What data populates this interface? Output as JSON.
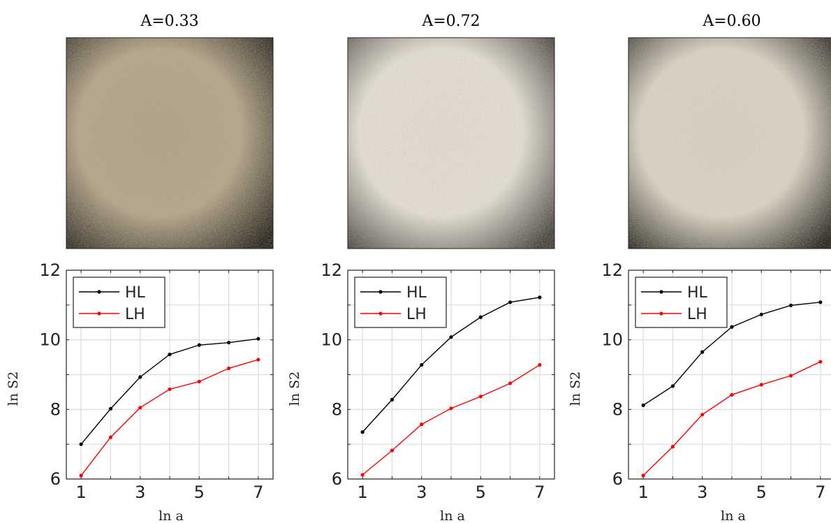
{
  "panels": [
    {
      "title": "A=0.33",
      "image": {
        "description": "textured surface photo",
        "tone_center": "#b0a083",
        "tone_edge": "#2f2a21"
      }
    },
    {
      "title": "A=0.72",
      "image": {
        "description": "textured surface photo",
        "tone_center": "#e1dbcf",
        "tone_edge": "#4a463f"
      }
    },
    {
      "title": "A=0.60",
      "image": {
        "description": "textured surface photo",
        "tone_center": "#d7d0bf",
        "tone_edge": "#2c2922"
      }
    }
  ],
  "chart_data": [
    {
      "type": "line",
      "xlabel": "ln a",
      "ylabel": "ln S2",
      "xlim": [
        0.5,
        7.5
      ],
      "ylim": [
        6,
        12
      ],
      "xticks": [
        1,
        3,
        5,
        7
      ],
      "yticks": [
        6,
        8,
        10,
        12
      ],
      "grid": true,
      "legend": "top-left",
      "x": [
        1,
        2,
        3,
        4,
        5,
        6,
        7
      ],
      "series": [
        {
          "name": "HL",
          "color": "#000000",
          "values": [
            7.0,
            8.02,
            8.93,
            9.58,
            9.85,
            9.92,
            10.03
          ]
        },
        {
          "name": "LH",
          "color": "#ff0000",
          "values": [
            6.1,
            7.2,
            8.05,
            8.58,
            8.8,
            9.18,
            9.43
          ]
        }
      ]
    },
    {
      "type": "line",
      "xlabel": "ln a",
      "ylabel": "ln S2",
      "xlim": [
        0.5,
        7.5
      ],
      "ylim": [
        6,
        12
      ],
      "xticks": [
        1,
        3,
        5,
        7
      ],
      "yticks": [
        6,
        8,
        10,
        12
      ],
      "grid": true,
      "legend": "top-left",
      "x": [
        1,
        2,
        3,
        4,
        5,
        6,
        7
      ],
      "series": [
        {
          "name": "HL",
          "color": "#000000",
          "values": [
            7.35,
            8.28,
            9.28,
            10.08,
            10.65,
            11.08,
            11.22
          ]
        },
        {
          "name": "LH",
          "color": "#ff0000",
          "values": [
            6.12,
            6.82,
            7.57,
            8.03,
            8.37,
            8.75,
            9.28
          ]
        }
      ]
    },
    {
      "type": "line",
      "xlabel": "ln a",
      "ylabel": "ln S2",
      "xlim": [
        0.5,
        7.5
      ],
      "ylim": [
        6,
        12
      ],
      "xticks": [
        1,
        3,
        5,
        7
      ],
      "yticks": [
        6,
        8,
        10,
        12
      ],
      "grid": true,
      "legend": "top-left",
      "x": [
        1,
        2,
        3,
        4,
        5,
        6,
        7
      ],
      "series": [
        {
          "name": "HL",
          "color": "#000000",
          "values": [
            8.12,
            8.67,
            9.65,
            10.37,
            10.73,
            10.99,
            11.08
          ]
        },
        {
          "name": "LH",
          "color": "#ff0000",
          "values": [
            6.1,
            6.93,
            7.85,
            8.42,
            8.71,
            8.97,
            9.37
          ]
        }
      ]
    }
  ]
}
